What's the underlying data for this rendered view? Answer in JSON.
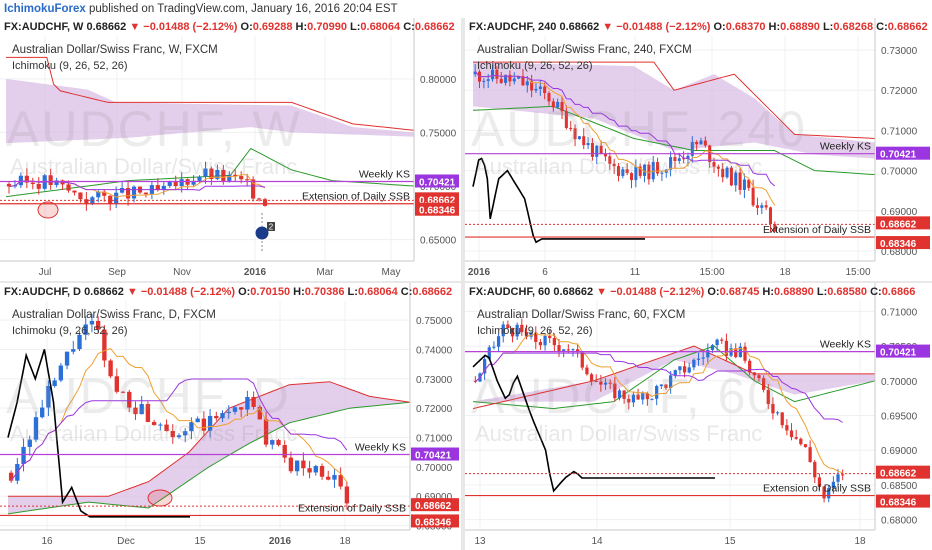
{
  "header": {
    "brand": "IchimokuForex",
    "rest": " published on TradingView.com, January 16, 2016 20:04 EST"
  },
  "colors": {
    "candle_up": "#2b6fd8",
    "candle_down": "#e0322e",
    "tenkan": "#f0a030",
    "kijun": "#9a35e0",
    "senkou_a": "#2a9a2a",
    "senkou_b": "#e03030",
    "chikou": "#000000",
    "cloud_bear": "#d9bde6",
    "ks_line": "#b640d8",
    "ssb_line": "#e0322e",
    "price_label": "#e0322e",
    "ks_label": "#9a35e0",
    "ssb_label": "#e0322e"
  },
  "chart_data": [
    {
      "id": "weekly",
      "type": "candlestick",
      "ohlc": {
        "symbol": "FX:AUDCHF, W",
        "last": "0.68662",
        "chg": "−0.01488 (−2.12%)",
        "O": "0.69288",
        "H": "0.70990",
        "L": "0.68064",
        "C": "0.68662"
      },
      "title": "Australian Dollar/Swiss Franc, W, FXCM",
      "indicator": "Ichimoku (9, 26, 52, 26)",
      "watermark": "AUDCHF, W",
      "watermark2": "Australian Dollar/Swiss Franc",
      "x_ticks": [
        "Jul",
        "Sep",
        "Nov",
        "2016",
        "Mar",
        "May"
      ],
      "y_ticks": [
        "0.80000",
        "0.75000",
        "0.70000",
        "0.65000"
      ],
      "ylim": [
        0.63,
        0.84
      ],
      "weekly_ks": 0.70421,
      "ssb": 0.68346,
      "last_price": 0.68662,
      "labels": {
        "ks": "Weekly KS",
        "ssb": "Extension of Daily SSB",
        "ks_val": "0.70421",
        "last_val": "0.68662",
        "ssb_val": "0.68346"
      },
      "event_badge": "2"
    },
    {
      "id": "h4",
      "type": "candlestick",
      "ohlc": {
        "symbol": "FX:AUDCHF, 240",
        "last": "0.68662",
        "chg": "−0.01488 (−2.12%)",
        "O": "0.68370",
        "H": "0.68890",
        "L": "0.68268",
        "C": "0.68662"
      },
      "title": "Australian Dollar/Swiss Franc, 240, FXCM",
      "indicator": "Ichimoku (9, 26, 52, 26)",
      "watermark": "AUDCHF, 240",
      "watermark2": "Australian Dollar/Swiss Franc",
      "x_ticks": [
        "2016",
        "6",
        "11",
        "15:00",
        "18",
        "15:00"
      ],
      "y_ticks": [
        "0.73000",
        "0.72000",
        "0.71000",
        "0.70000",
        "0.69000",
        "0.68000"
      ],
      "ylim": [
        0.6775,
        0.7335
      ],
      "weekly_ks": 0.70421,
      "ssb": 0.68346,
      "last_price": 0.68662,
      "labels": {
        "ks": "Weekly KS",
        "ssb": "Extension of Daily SSB",
        "ks_val": "0.70421",
        "last_val": "0.68662",
        "ssb_val": "0.68346"
      }
    },
    {
      "id": "daily",
      "type": "candlestick",
      "ohlc": {
        "symbol": "FX:AUDCHF, D",
        "last": "0.68662",
        "chg": "−0.01488 (−2.12%)",
        "O": "0.70150",
        "H": "0.70386",
        "L": "0.68064",
        "C": "0.68662"
      },
      "title": "Australian Dollar/Swiss Franc, D, FXCM",
      "indicator": "Ichimoku (9, 26, 52, 26)",
      "watermark": "AUDCHF, D",
      "watermark2": "Australian Dollar/Swiss Franc",
      "x_ticks": [
        "16",
        "Dec",
        "15",
        "2016",
        "18"
      ],
      "y_ticks": [
        "0.75000",
        "0.74000",
        "0.73000",
        "0.72000",
        "0.71000",
        "0.70000",
        "0.69000",
        "0.68000"
      ],
      "ylim": [
        0.6785,
        0.7565
      ],
      "weekly_ks": 0.70421,
      "ssb": 0.68346,
      "last_price": 0.68662,
      "labels": {
        "ks": "Weekly KS",
        "ssb": "Extension of Daily SSB",
        "ks_val": "0.70421",
        "last_val": "0.68662",
        "ssb_val": "0.68346"
      }
    },
    {
      "id": "h1",
      "type": "candlestick",
      "ohlc": {
        "symbol": "FX:AUDCHF, 60",
        "last": "0.68662",
        "chg": "−0.01488 (−2.12%)",
        "O": "0.68745",
        "H": "0.68890",
        "L": "0.68580",
        "C": "0.6866"
      },
      "title": "Australian Dollar/Swiss Franc, 60, FXCM",
      "indicator": "Ichimoku (9, 26, 52, 26)",
      "watermark": "AUDCHF, 60",
      "watermark2": "Australian Dollar/Swiss Franc",
      "x_ticks": [
        "13",
        "14",
        "15",
        "18"
      ],
      "y_ticks": [
        "0.71000",
        "0.70500",
        "0.70000",
        "0.69500",
        "0.69000",
        "0.68500",
        "0.68000"
      ],
      "ylim": [
        0.6785,
        0.7115
      ],
      "weekly_ks": 0.70421,
      "ssb": 0.68346,
      "last_price": 0.68662,
      "labels": {
        "ks": "Weekly KS",
        "ssb": "Extension of Daily SSB",
        "ks_val": "0.70421",
        "last_val": "0.68662",
        "ssb_val": "0.68346"
      }
    }
  ]
}
